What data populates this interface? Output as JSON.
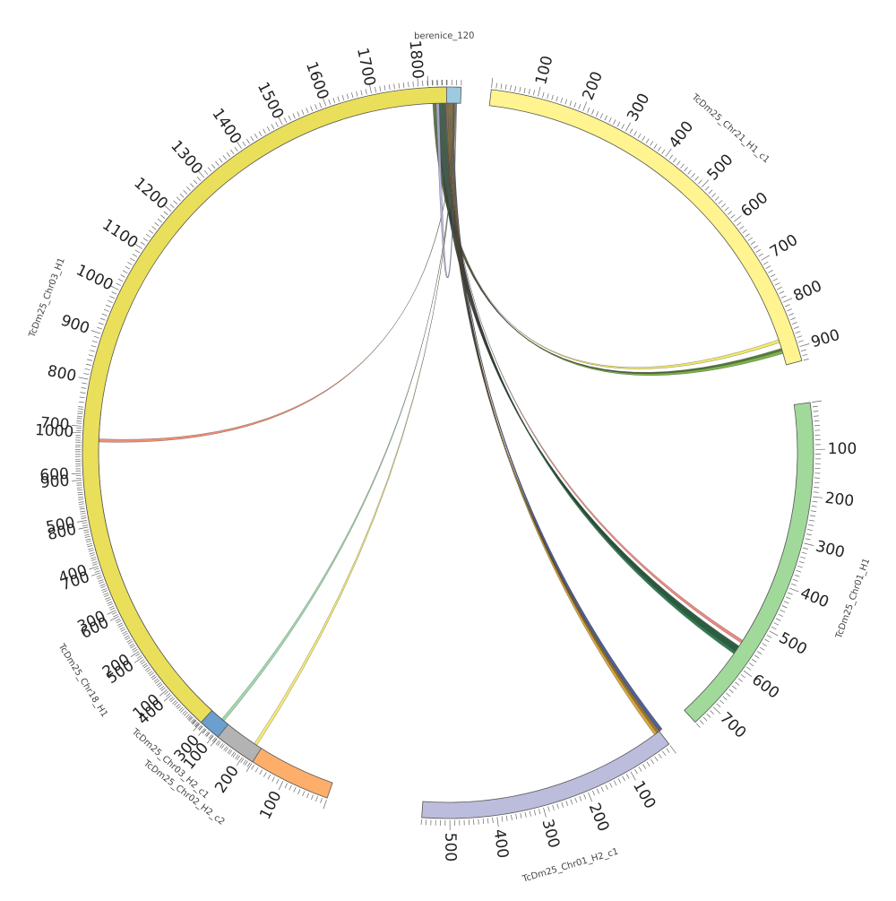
{
  "chart_data": {
    "type": "chord",
    "segments": [
      {
        "name": "berenice_120",
        "length": 70,
        "color": "#9ecae1",
        "ticks": []
      },
      {
        "name": "TcDm25_Chr21_H1_c1",
        "length": 930,
        "color": "#fff48f",
        "ticks": [
          100,
          200,
          300,
          400,
          500,
          600,
          700,
          800,
          900
        ]
      },
      {
        "name": "TcDm25_Chr01_H1",
        "length": 750,
        "color": "#a1d99b",
        "ticks": [
          100,
          200,
          300,
          400,
          500,
          600,
          700
        ]
      },
      {
        "name": "TcDm25_Chr01_H2_c1",
        "length": 560,
        "color": "#bcbddc",
        "ticks": [
          100,
          200,
          300,
          400,
          500
        ]
      },
      {
        "name": "TcDm25_Chr18_H1",
        "length": 1050,
        "color": "#fdae6b",
        "ticks": [
          100,
          200,
          300,
          400,
          500,
          600,
          700,
          800,
          900,
          1000
        ]
      },
      {
        "name": "TcDm25_Chr02_H2_c2",
        "length": 150,
        "color": "#b3b3b3",
        "ticks": [
          100
        ]
      },
      {
        "name": "TcDm25_Chr03_H2_c1",
        "length": 75,
        "color": "#6a9fce",
        "ticks": []
      },
      {
        "name": "TcDm25_Chr03_H1",
        "length": 1860,
        "color": "#eadf5a",
        "ticks": [
          100,
          200,
          300,
          400,
          500,
          600,
          700,
          800,
          900,
          1000,
          1100,
          1200,
          1300,
          1400,
          1500,
          1600,
          1700,
          1800
        ]
      }
    ],
    "links": [
      {
        "source": "berenice_120",
        "target": "TcDm25_Chr21_H1_c1",
        "target_pos": 900,
        "color": "#7ab648",
        "count": 6
      },
      {
        "source": "berenice_120",
        "target": "TcDm25_Chr21_H1_c1",
        "target_pos": 880,
        "color": "#f2e64a",
        "count": 1
      },
      {
        "source": "berenice_120",
        "target": "TcDm25_Chr01_H1",
        "target_pos": 570,
        "color": "#2e7d4f",
        "count": 14
      },
      {
        "source": "berenice_120",
        "target": "TcDm25_Chr01_H1",
        "target_pos": 555,
        "color": "#e8746a",
        "count": 1
      },
      {
        "source": "berenice_120",
        "target": "TcDm25_Chr01_H2_c1",
        "target_pos": 5,
        "color": "#d9a63a",
        "count": 10
      },
      {
        "source": "berenice_120",
        "target": "TcDm25_Chr01_H2_c1",
        "target_pos": 0,
        "color": "#4b5fa0",
        "count": 2
      },
      {
        "source": "berenice_120",
        "target": "TcDm25_Chr18_H1",
        "target_pos": 990,
        "color": "#f07a5c",
        "count": 1
      },
      {
        "source": "berenice_120",
        "target": "TcDm25_Chr02_H2_c2",
        "target_pos": 20,
        "color": "#f5e65c",
        "count": 1
      },
      {
        "source": "berenice_120",
        "target": "TcDm25_Chr03_H2_c1",
        "target_pos": 20,
        "color": "#8fd19e",
        "count": 1
      },
      {
        "source": "berenice_120",
        "target": "TcDm25_Chr03_H1",
        "target_pos": 1845,
        "color": "#b5b0dc",
        "count": 1
      }
    ]
  }
}
